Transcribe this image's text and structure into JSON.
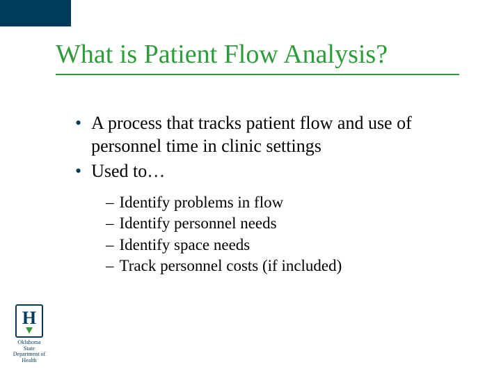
{
  "colors": {
    "title": "#2e9a3a",
    "accent_bar": "#003a5d",
    "bullet_dot": "#003a5d",
    "body_text": "#000000",
    "background": "#ffffff",
    "logo_border": "#003a5d",
    "logo_leaf": "#2e9a3a"
  },
  "title": "What is Patient Flow Analysis?",
  "bullets": {
    "b1": "A process that tracks patient flow and use of personnel time in clinic settings",
    "b2": "Used to…",
    "b2_sub1": "Identify problems in flow",
    "b2_sub2": "Identify personnel needs",
    "b2_sub3": "Identify space needs",
    "b2_sub4": "Track personnel costs (if included)"
  },
  "logo": {
    "letter": "H",
    "line1": "Oklahoma",
    "line2": "State",
    "line3": "Department of",
    "line4": "Health"
  }
}
